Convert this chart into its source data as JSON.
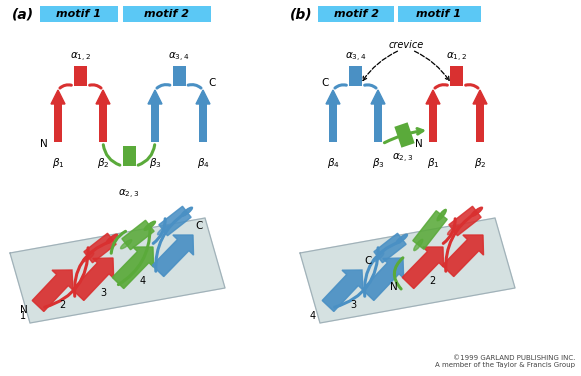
{
  "background_color": "#ffffff",
  "red_color": "#d93030",
  "green_color": "#5aaa3a",
  "blue_color": "#4a90c4",
  "motif_bar_color": "#5bc8f5",
  "sheet_color": "#c8d8d8",
  "sheet_edge_color": "#a0b0b8",
  "footer_text": "©1999 GARLAND PUBLISHING INC.\nA member of the Taylor & Francis Group",
  "panel_a_label": "(a)",
  "panel_b_label": "(b)"
}
